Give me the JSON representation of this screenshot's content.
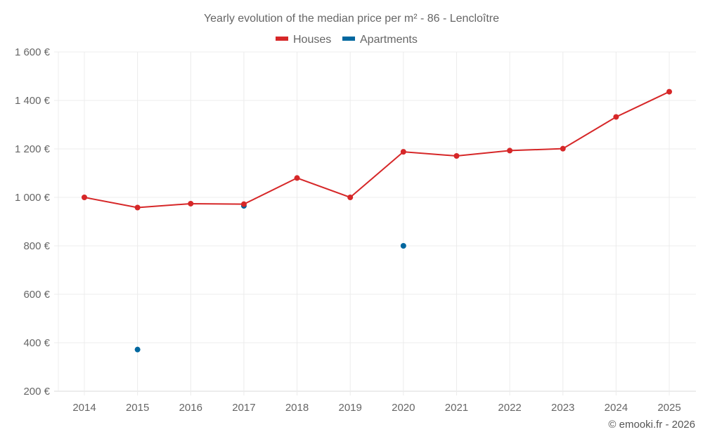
{
  "chart_data": {
    "type": "line",
    "title": "Yearly evolution of the median price per m² - 86 - Lencloître",
    "xlabel": "",
    "ylabel": "",
    "categories": [
      "2014",
      "2015",
      "2016",
      "2017",
      "2018",
      "2019",
      "2020",
      "2021",
      "2022",
      "2023",
      "2024",
      "2025"
    ],
    "ylim": [
      200,
      1600
    ],
    "yticks": [
      200,
      400,
      600,
      800,
      1000,
      1200,
      1400,
      1600
    ],
    "ytick_labels": [
      "200 €",
      "400 €",
      "600 €",
      "800 €",
      "1 000 €",
      "1 200 €",
      "1 400 €",
      "1 600 €"
    ],
    "grid": true,
    "legend_position": "top-center",
    "series": [
      {
        "name": "Houses",
        "color": "#d62728",
        "mode": "lines+markers",
        "values": [
          1000,
          958,
          974,
          972,
          1080,
          1000,
          1188,
          1171,
          1193,
          1201,
          1332,
          1436
        ]
      },
      {
        "name": "Apartments",
        "color": "#00679f",
        "mode": "markers",
        "values": [
          null,
          372,
          null,
          965,
          null,
          null,
          800,
          null,
          null,
          null,
          null,
          null
        ]
      }
    ],
    "credit": "© emooki.fr - 2026"
  }
}
